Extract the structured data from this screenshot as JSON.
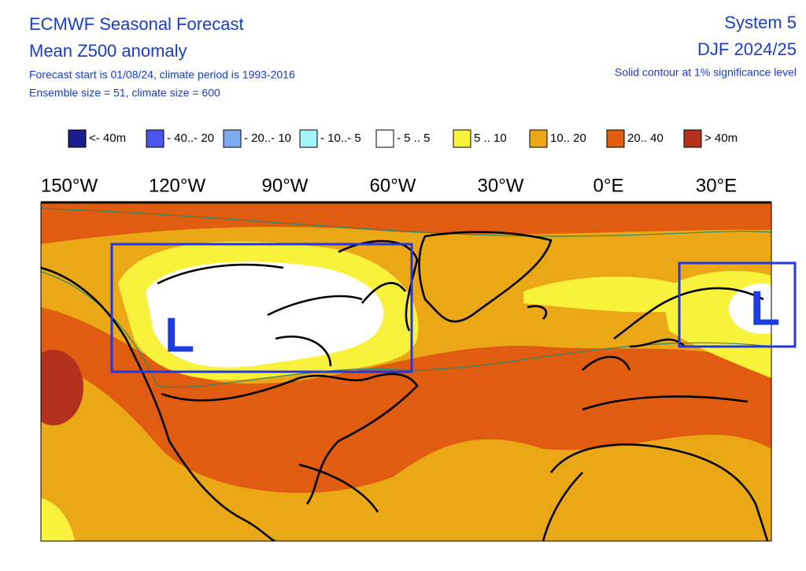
{
  "header": {
    "title": "ECMWF Seasonal Forecast",
    "subtitle": "Mean Z500 anomaly",
    "forecast_info": "Forecast start is 01/08/24, climate period is 1993-2016",
    "ensemble_info": "Ensemble size = 51, climate size = 600",
    "system": "System 5",
    "period": "DJF 2024/25",
    "contour_note": "Solid contour at 1% significance level"
  },
  "legend": [
    {
      "label": "<- 40m",
      "color": "#1c1c8e"
    },
    {
      "label": "- 40..- 20",
      "color": "#4b56f0"
    },
    {
      "label": "- 20..- 10",
      "color": "#7dabf0"
    },
    {
      "label": "- 10..- 5",
      "color": "#a2f6f8"
    },
    {
      "label": "- 5 .. 5",
      "color": "#ffffff"
    },
    {
      "label": "5 .. 10",
      "color": "#f8f23c"
    },
    {
      "label": "10.. 20",
      "color": "#eba816"
    },
    {
      "label": "20.. 40",
      "color": "#e05c10"
    },
    {
      "label": "> 40m",
      "color": "#b2321e"
    }
  ],
  "map": {
    "longitude_labels": [
      "150°W",
      "120°W",
      "90°W",
      "60°W",
      "30°W",
      "0°E",
      "30°E"
    ],
    "markers": [
      {
        "label": "L"
      },
      {
        "label": "L"
      }
    ]
  }
}
